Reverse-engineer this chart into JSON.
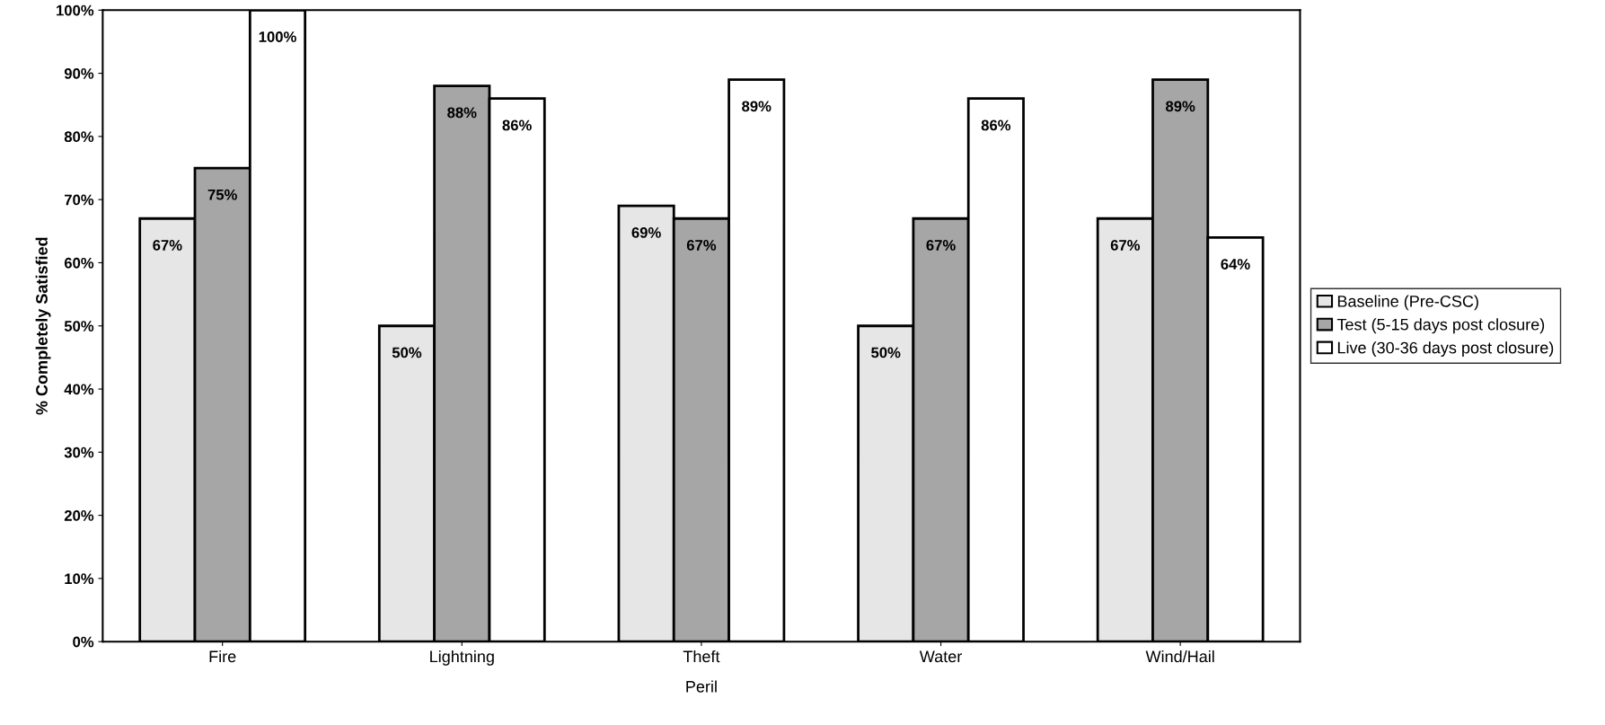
{
  "chart_data": {
    "type": "bar",
    "xlabel": "Peril",
    "ylabel": "% Completely Satisfied",
    "categories": [
      "Fire",
      "Lightning",
      "Theft",
      "Water",
      "Wind/Hail"
    ],
    "series": [
      {
        "name": "Baseline (Pre-CSC)",
        "color": "#e6e6e6",
        "values": [
          67,
          50,
          69,
          50,
          67
        ],
        "value_labels": [
          "67%",
          "50%",
          "69%",
          "50%",
          "67%"
        ]
      },
      {
        "name": "Test (5-15 days post closure)",
        "color": "#a6a6a6",
        "values": [
          75,
          88,
          67,
          67,
          89
        ],
        "value_labels": [
          "75%",
          "88%",
          "67%",
          "67%",
          "89%"
        ]
      },
      {
        "name": "Live (30-36 days post closure)",
        "color": "#ffffff",
        "values": [
          100,
          86,
          89,
          86,
          64
        ],
        "value_labels": [
          "100%",
          "86%",
          "89%",
          "86%",
          "64%"
        ]
      }
    ],
    "ylim": [
      0,
      100
    ],
    "yticks": [
      {
        "value": 0,
        "label": "0%"
      },
      {
        "value": 10,
        "label": "10%"
      },
      {
        "value": 20,
        "label": "20%"
      },
      {
        "value": 30,
        "label": "30%"
      },
      {
        "value": 40,
        "label": "40%"
      },
      {
        "value": 50,
        "label": "50%"
      },
      {
        "value": 60,
        "label": "60%"
      },
      {
        "value": 70,
        "label": "70%"
      },
      {
        "value": 80,
        "label": "80%"
      },
      {
        "value": 90,
        "label": "90%"
      },
      {
        "value": 100,
        "label": "100%"
      }
    ],
    "grid": false,
    "legend": "right"
  }
}
